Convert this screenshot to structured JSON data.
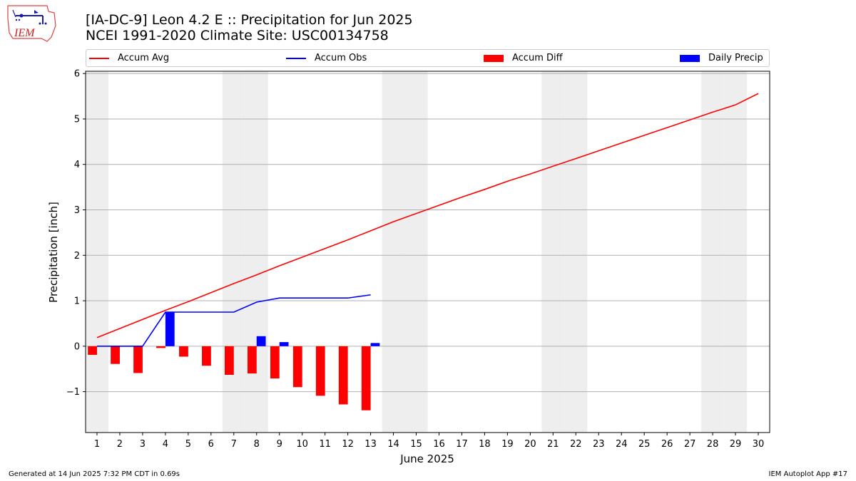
{
  "header": {
    "title_line1": "[IA-DC-9] Leon 4.2 E :: Precipitation for Jun 2025",
    "title_line2": "NCEI 1991-2020 Climate Site: USC00134758"
  },
  "logo": {
    "text": "IEM"
  },
  "footer": {
    "left": "Generated at 14 Jun 2025 7:32 PM CDT in 0.69s",
    "right": "IEM Autoplot App #17"
  },
  "colors": {
    "avg": "#ff0000",
    "obs": "#0000ff",
    "diff": "#ff0000",
    "daily": "#0000ff",
    "weekend": "#eeeeee",
    "grid": "#b0b0b0"
  },
  "chart_data": {
    "type": "bar",
    "xlabel": "June 2025",
    "ylabel": "Precipitation [inch]",
    "ylim": [
      -1.9,
      6.05
    ],
    "y_ticks": [
      -1,
      0,
      1,
      2,
      3,
      4,
      5,
      6
    ],
    "y_tick_labels": [
      "−1",
      "0",
      "1",
      "2",
      "3",
      "4",
      "5",
      "6"
    ],
    "grid": "horizontal",
    "legend_position": "top",
    "days": [
      1,
      2,
      3,
      4,
      5,
      6,
      7,
      8,
      9,
      10,
      11,
      12,
      13,
      14,
      15,
      16,
      17,
      18,
      19,
      20,
      21,
      22,
      23,
      24,
      25,
      26,
      27,
      28,
      29,
      30
    ],
    "weekend_days": [
      1,
      7,
      8,
      14,
      15,
      21,
      22,
      28,
      29
    ],
    "series": [
      {
        "name": "Accum Avg",
        "type": "line",
        "values": [
          0.19,
          0.39,
          0.59,
          0.79,
          0.98,
          1.18,
          1.38,
          1.57,
          1.77,
          1.96,
          2.15,
          2.34,
          2.54,
          2.74,
          2.92,
          3.1,
          3.28,
          3.45,
          3.63,
          3.79,
          3.96,
          4.13,
          4.3,
          4.47,
          4.64,
          4.81,
          4.98,
          5.15,
          5.31,
          5.56
        ]
      },
      {
        "name": "Accum Obs",
        "type": "line",
        "values": [
          0.0,
          0.0,
          0.0,
          0.75,
          0.75,
          0.75,
          0.75,
          0.97,
          1.06,
          1.06,
          1.06,
          1.06,
          1.13
        ]
      },
      {
        "name": "Accum Diff",
        "type": "bar",
        "values": [
          -0.19,
          -0.39,
          -0.59,
          -0.04,
          -0.23,
          -0.43,
          -0.63,
          -0.6,
          -0.71,
          -0.9,
          -1.09,
          -1.28,
          -1.41
        ]
      },
      {
        "name": "Daily Precip",
        "type": "bar",
        "values": [
          0.0,
          0.0,
          0.0,
          0.75,
          0.0,
          0.0,
          0.0,
          0.22,
          0.09,
          0.0,
          0.0,
          0.0,
          0.07
        ]
      }
    ]
  }
}
